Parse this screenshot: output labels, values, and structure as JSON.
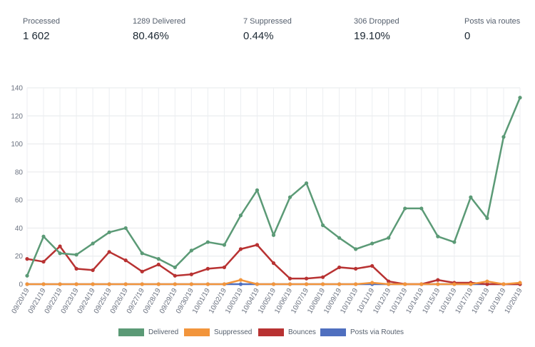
{
  "stats": [
    {
      "label": "Processed",
      "value": "1 602"
    },
    {
      "label": "1289 Delivered",
      "value": "80.46%"
    },
    {
      "label": "7 Suppressed",
      "value": "0.44%"
    },
    {
      "label": "306 Dropped",
      "value": "19.10%"
    },
    {
      "label": "Posts via routes",
      "value": "0"
    }
  ],
  "chart_data": {
    "type": "line",
    "title": "",
    "xlabel": "",
    "ylabel": "",
    "ylim": [
      0,
      140
    ],
    "yticks": [
      0,
      20,
      40,
      60,
      80,
      100,
      120,
      140
    ],
    "grid": true,
    "legend_position": "bottom",
    "categories": [
      "09/20/19",
      "09/21/19",
      "09/22/19",
      "09/23/19",
      "09/24/19",
      "09/25/19",
      "09/26/19",
      "09/27/19",
      "09/28/19",
      "09/29/19",
      "09/30/19",
      "10/01/19",
      "10/02/19",
      "10/03/19",
      "10/04/19",
      "10/05/19",
      "10/06/19",
      "10/07/19",
      "10/08/19",
      "10/09/19",
      "10/10/19",
      "10/11/19",
      "10/12/19",
      "10/13/19",
      "10/14/19",
      "10/15/19",
      "10/16/19",
      "10/17/19",
      "10/18/19",
      "10/19/19",
      "10/20/19"
    ],
    "series": [
      {
        "name": "Delivered",
        "color": "#5b9a76",
        "values": [
          6,
          34,
          22,
          21,
          29,
          37,
          40,
          22,
          18,
          12,
          24,
          30,
          28,
          49,
          67,
          35,
          62,
          72,
          42,
          33,
          25,
          29,
          33,
          54,
          54,
          34,
          30,
          62,
          47,
          105,
          133
        ]
      },
      {
        "name": "Suppressed",
        "color": "#f2953c",
        "values": [
          0,
          0,
          0,
          0,
          0,
          0,
          0,
          0,
          0,
          0,
          0,
          0,
          0,
          3,
          0,
          0,
          0,
          0,
          0,
          0,
          0,
          1,
          0,
          0,
          0,
          0,
          0,
          0,
          2,
          0,
          1
        ]
      },
      {
        "name": "Bounces",
        "color": "#b83232",
        "values": [
          18,
          16,
          27,
          11,
          10,
          23,
          17,
          9,
          14,
          6,
          7,
          11,
          12,
          25,
          28,
          15,
          4,
          4,
          5,
          12,
          11,
          13,
          2,
          0,
          0,
          3,
          1,
          1,
          0,
          0,
          0
        ]
      },
      {
        "name": "Posts via Routes",
        "color": "#4f6fbf",
        "values": [
          0,
          0,
          0,
          0,
          0,
          0,
          0,
          0,
          0,
          0,
          0,
          0,
          0,
          0,
          0,
          0,
          0,
          0,
          0,
          0,
          0,
          0,
          0,
          0,
          0,
          0,
          0,
          0,
          0,
          0,
          0
        ]
      }
    ]
  }
}
